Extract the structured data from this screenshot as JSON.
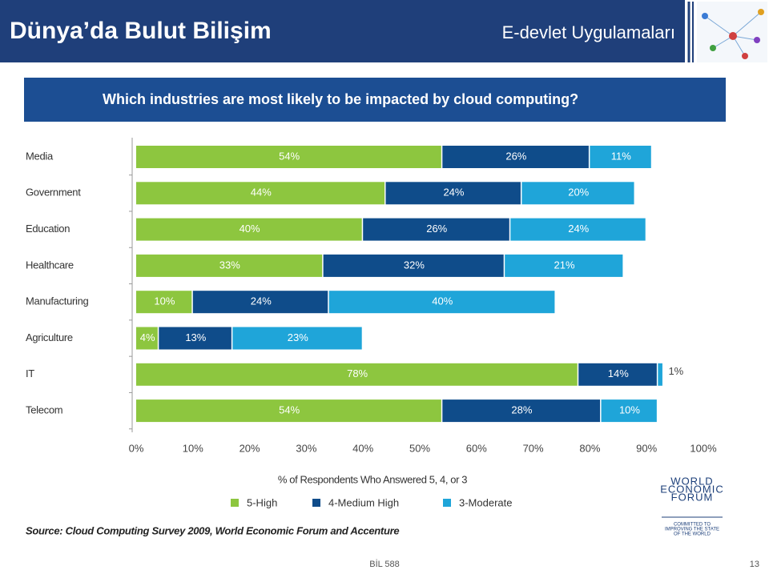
{
  "slide": {
    "title": "Dünya’da Bulut Bilişim",
    "subtitle": "E-devlet Uygulamaları",
    "source": "Source: Cloud Computing Survey 2009, World Economic Forum and Accenture",
    "logo": [
      "WORLD",
      "ECONOMIC",
      "FORUM"
    ],
    "motto": [
      "COMMITTED TO",
      "IMPROVING THE STATE",
      "OF THE WORLD"
    ],
    "footer": "BİL 588",
    "page": "13"
  },
  "chart_data": {
    "type": "hbar-stacked",
    "title": "Which industries are most likely to be impacted by cloud computing?",
    "xlabel": "% of Respondents Who Answered 5, 4, or 3",
    "categories": [
      "Media",
      "Government",
      "Education",
      "Healthcare",
      "Manufacturing",
      "Agriculture",
      "IT",
      "Telecom"
    ],
    "series": [
      {
        "name": "5-High",
        "color": "#8dc63f",
        "values": [
          54,
          44,
          40,
          33,
          10,
          4,
          78,
          54
        ],
        "value_labels": [
          "54%",
          "44%",
          "40%",
          "33%",
          "10%",
          "4%",
          "78%",
          "54%"
        ]
      },
      {
        "name": "4-Medium High",
        "color": "#0f4c8a",
        "values": [
          26,
          24,
          26,
          32,
          24,
          13,
          14,
          28
        ],
        "value_labels": [
          "26%",
          "24%",
          "26%",
          "32%",
          "24%",
          "13%",
          "14%",
          "28%"
        ]
      },
      {
        "name": "3-Moderate",
        "color": "#1fa5d9",
        "values": [
          11,
          20,
          24,
          21,
          40,
          23,
          1,
          10
        ],
        "value_labels": [
          "11%",
          "20%",
          "24%",
          "21%",
          "40%",
          "23%",
          "1%",
          "10%"
        ]
      }
    ],
    "xlim": [
      0,
      100
    ],
    "xticks": [
      {
        "value": 0,
        "label": "0%"
      },
      {
        "value": 10,
        "label": "10%"
      },
      {
        "value": 20,
        "label": "20%"
      },
      {
        "value": 30,
        "label": "30%"
      },
      {
        "value": 40,
        "label": "40%"
      },
      {
        "value": 50,
        "label": "50%"
      },
      {
        "value": 60,
        "label": "60%"
      },
      {
        "value": 70,
        "label": "70%"
      },
      {
        "value": 80,
        "label": "80%"
      },
      {
        "value": 90,
        "label": "90%"
      },
      {
        "value": 100,
        "label": "100%"
      }
    ],
    "grid": false
  }
}
